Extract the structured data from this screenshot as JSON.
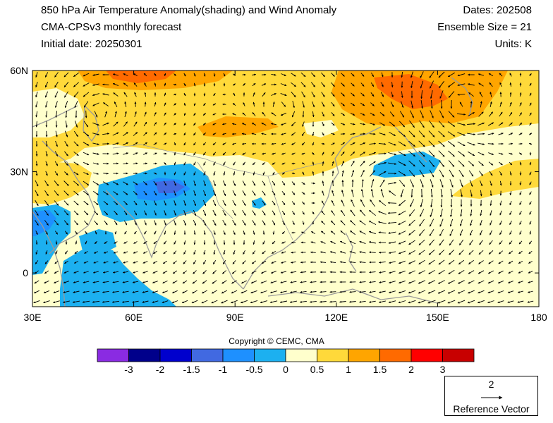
{
  "header": {
    "title": "850 hPa Air Temperature Anomaly(shading) and Wind Anomaly",
    "model": "CMA-CPSv3 monthly forecast",
    "initial_date": "Initial date: 20250301",
    "dates": "Dates: 202508",
    "ensemble": "Ensemble Size = 21",
    "units": "Units: K"
  },
  "axes": {
    "lat_labels": [
      "60N",
      "30N",
      "0"
    ],
    "lat_values": [
      60,
      30,
      0
    ],
    "lon_labels": [
      "30E",
      "60E",
      "90E",
      "120E",
      "150E",
      "180"
    ],
    "lon_values": [
      30,
      60,
      90,
      120,
      150,
      180
    ],
    "lon_range": [
      30,
      180
    ],
    "lat_range": [
      -10,
      60
    ]
  },
  "copyright": "Copyright © CEMC, CMA",
  "colorbar": {
    "labels": [
      "-3",
      "-2",
      "-1.5",
      "-1",
      "-0.5",
      "0",
      "0.5",
      "1",
      "1.5",
      "2",
      "3"
    ],
    "colors": [
      "#8a2be2",
      "#00008b",
      "#0000cd",
      "#4169e1",
      "#1e90ff",
      "#1cb0f0",
      "#ffffcc",
      "#ffd93a",
      "#ffa500",
      "#ff6a00",
      "#ff0000",
      "#c80000"
    ]
  },
  "reference_vector": {
    "value": "2",
    "label": "Reference Vector"
  }
}
